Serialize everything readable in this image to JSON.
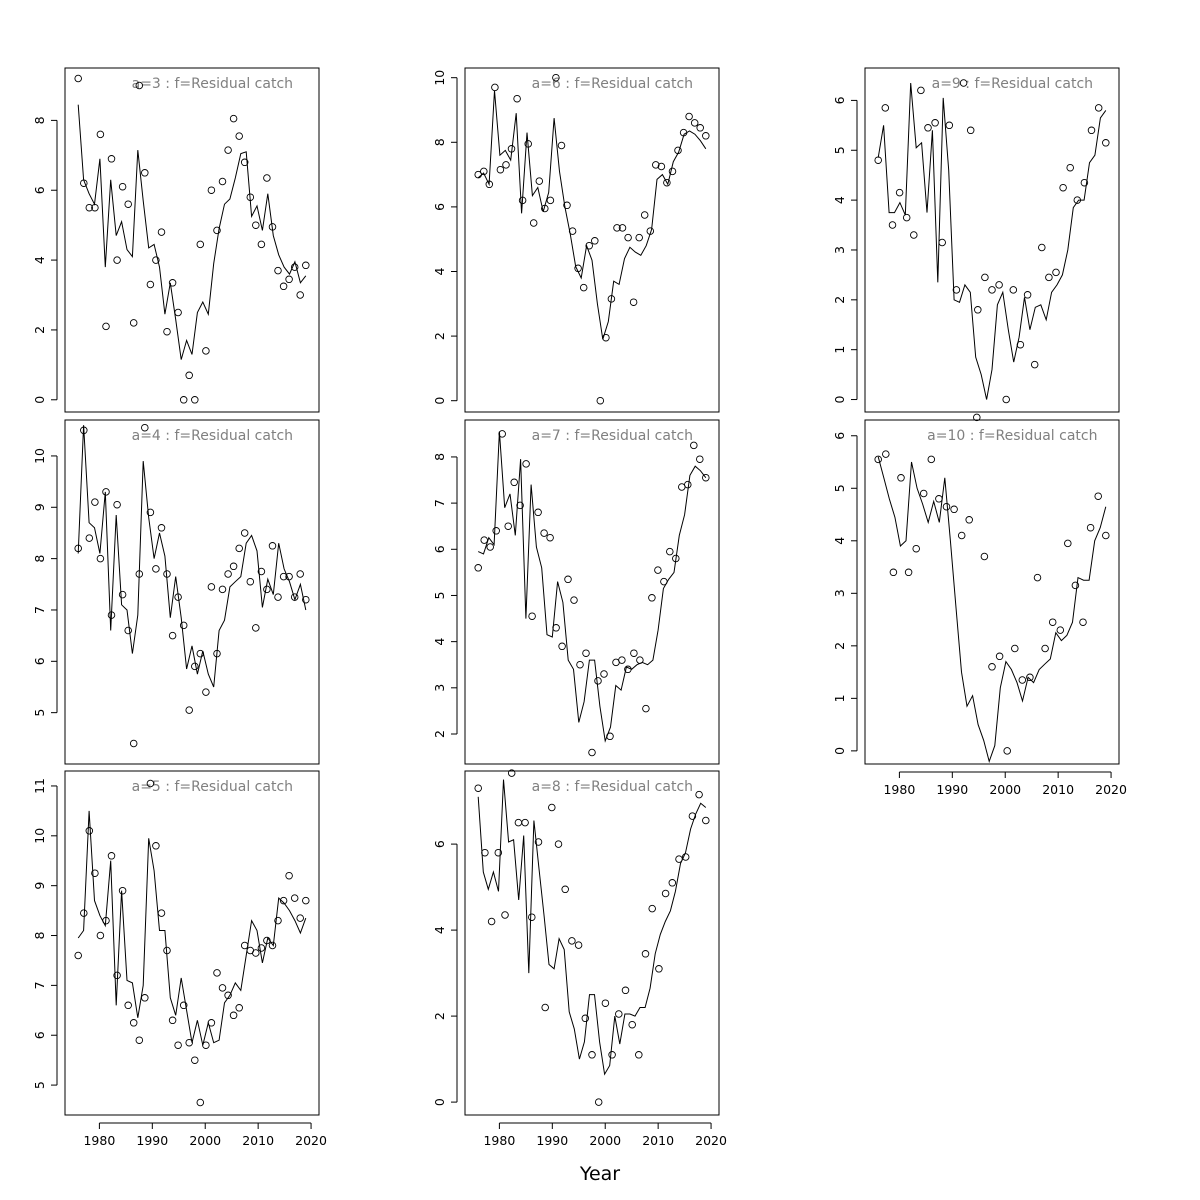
{
  "figure": {
    "xlabel": "Year"
  },
  "chart_data": [
    {
      "type": "scatter",
      "title": "a=3  :  f=Residual catch",
      "xlim": [
        1973.5,
        2021.5
      ],
      "ylim": [
        -0.35,
        9.5
      ],
      "yticks": [
        0,
        2,
        4,
        6,
        8
      ],
      "xticks": [],
      "x_start": 1976,
      "points": [
        9.2,
        6.2,
        5.5,
        5.5,
        7.6,
        2.1,
        6.9,
        4.0,
        6.1,
        5.6,
        2.2,
        9.0,
        6.5,
        3.3,
        4.0,
        4.8,
        1.95,
        3.35,
        2.5,
        0.0,
        0.7,
        0.0,
        4.45,
        1.4,
        6.0,
        4.85,
        6.25,
        7.15,
        8.05,
        7.55,
        6.8,
        5.8,
        5.0,
        4.45,
        6.35,
        4.95,
        3.7,
        3.25,
        3.45,
        3.8,
        3.0,
        3.85
      ],
      "line": [
        8.45,
        6.3,
        5.9,
        5.6,
        6.9,
        3.8,
        6.3,
        4.7,
        5.1,
        4.3,
        4.1,
        7.15,
        5.7,
        4.35,
        4.45,
        3.8,
        2.45,
        3.35,
        2.3,
        1.15,
        1.7,
        1.3,
        2.5,
        2.8,
        2.45,
        3.9,
        4.9,
        5.6,
        5.75,
        6.35,
        7.05,
        7.1,
        5.25,
        5.55,
        4.85,
        5.9,
        4.7,
        4.15,
        3.8,
        3.6,
        3.95,
        3.35,
        3.55
      ]
    },
    {
      "type": "scatter",
      "title": "a=4  :  f=Residual catch",
      "xlim": [
        1973.5,
        2021.5
      ],
      "ylim": [
        4.0,
        10.7
      ],
      "yticks": [
        5,
        6,
        7,
        8,
        9,
        10
      ],
      "xticks": [],
      "x_start": 1976,
      "points": [
        8.2,
        10.5,
        8.4,
        9.1,
        8.0,
        9.3,
        6.9,
        9.05,
        7.3,
        6.6,
        4.4,
        7.7,
        10.55,
        8.9,
        7.8,
        8.6,
        7.7,
        6.5,
        7.25,
        6.7,
        5.05,
        5.9,
        6.15,
        5.4,
        7.45,
        6.15,
        7.4,
        7.7,
        7.85,
        8.2,
        8.5,
        7.55,
        6.65,
        7.75,
        7.4,
        8.25,
        7.25,
        7.65,
        7.65,
        7.25,
        7.7,
        7.2
      ],
      "line": [
        8.1,
        10.6,
        8.7,
        8.6,
        8.1,
        9.3,
        6.6,
        8.85,
        7.1,
        7.0,
        6.15,
        6.9,
        9.9,
        8.8,
        8.0,
        8.5,
        8.05,
        6.85,
        7.65,
        6.85,
        5.85,
        6.3,
        5.75,
        6.2,
        5.75,
        5.5,
        6.6,
        6.8,
        7.45,
        7.55,
        7.65,
        8.3,
        8.45,
        8.15,
        7.05,
        7.6,
        7.3,
        8.3,
        7.8,
        7.55,
        7.2,
        7.5,
        7.0
      ]
    },
    {
      "type": "scatter",
      "title": "a=5  :  f=Residual catch",
      "xlim": [
        1973.5,
        2021.5
      ],
      "ylim": [
        4.4,
        11.3
      ],
      "yticks": [
        5,
        6,
        7,
        8,
        9,
        10,
        11
      ],
      "xticks": [
        1980,
        1990,
        2000,
        2010,
        2020
      ],
      "x_start": 1976,
      "points": [
        7.6,
        8.45,
        10.1,
        9.25,
        8.0,
        8.3,
        9.6,
        7.2,
        8.9,
        6.6,
        6.25,
        5.9,
        6.75,
        11.05,
        9.8,
        8.45,
        7.7,
        6.3,
        5.8,
        6.6,
        5.85,
        5.5,
        4.65,
        5.8,
        6.25,
        7.25,
        6.95,
        6.8,
        6.4,
        6.55,
        7.8,
        7.7,
        7.65,
        7.75,
        7.9,
        7.8,
        8.3,
        8.7,
        9.2,
        8.75,
        8.35,
        8.7
      ],
      "line": [
        7.95,
        8.1,
        10.5,
        8.7,
        8.4,
        8.2,
        9.5,
        6.6,
        8.9,
        7.1,
        7.05,
        6.35,
        7.0,
        9.95,
        9.3,
        8.1,
        8.1,
        6.75,
        6.4,
        7.15,
        6.5,
        5.85,
        6.3,
        5.8,
        6.25,
        5.85,
        5.9,
        6.65,
        6.8,
        7.05,
        6.9,
        7.6,
        8.3,
        8.1,
        7.45,
        7.95,
        7.8,
        8.75,
        8.65,
        8.5,
        8.3,
        8.05,
        8.35
      ]
    },
    {
      "type": "scatter",
      "title": "a=6  :  f=Residual catch",
      "xlim": [
        1973.5,
        2021.5
      ],
      "ylim": [
        -0.35,
        10.3
      ],
      "yticks": [
        0,
        2,
        4,
        6,
        8,
        10
      ],
      "xticks": [],
      "x_start": 1976,
      "points": [
        7.0,
        7.1,
        6.7,
        9.7,
        7.15,
        7.3,
        7.8,
        9.35,
        6.2,
        7.95,
        5.5,
        6.8,
        5.95,
        6.2,
        10.0,
        7.9,
        6.05,
        5.25,
        4.1,
        3.5,
        4.8,
        4.95,
        0.0,
        1.95,
        3.15,
        5.35,
        5.35,
        5.05,
        3.05,
        5.05,
        5.75,
        5.25,
        7.3,
        7.25,
        6.75,
        7.1,
        7.75,
        8.3,
        8.8,
        8.6,
        8.45,
        8.2
      ],
      "line": [
        6.9,
        7.05,
        6.7,
        9.6,
        7.6,
        7.75,
        7.45,
        8.9,
        5.8,
        8.3,
        6.35,
        6.6,
        5.85,
        6.45,
        8.75,
        7.1,
        6.0,
        5.15,
        4.15,
        3.8,
        4.8,
        4.35,
        3.0,
        1.9,
        2.45,
        3.7,
        3.6,
        4.4,
        4.75,
        4.6,
        4.5,
        4.8,
        5.3,
        6.85,
        7.0,
        6.7,
        7.4,
        7.7,
        8.25,
        8.35,
        8.25,
        8.05,
        7.8
      ]
    },
    {
      "type": "scatter",
      "title": "a=7  :  f=Residual catch",
      "xlim": [
        1973.5,
        2021.5
      ],
      "ylim": [
        1.35,
        8.8
      ],
      "yticks": [
        2,
        3,
        4,
        5,
        6,
        7,
        8
      ],
      "xticks": [],
      "x_start": 1976,
      "points": [
        5.6,
        6.2,
        6.05,
        6.4,
        8.5,
        6.5,
        7.45,
        6.95,
        7.85,
        4.55,
        6.8,
        6.35,
        6.25,
        4.3,
        3.9,
        5.35,
        4.9,
        3.5,
        3.75,
        1.6,
        3.15,
        3.3,
        1.95,
        3.55,
        3.6,
        3.4,
        3.75,
        3.6,
        2.55,
        4.95,
        5.55,
        5.3,
        5.95,
        5.8,
        7.35,
        7.4,
        8.25,
        7.95,
        7.55
      ],
      "line": [
        5.95,
        5.9,
        6.25,
        6.1,
        8.55,
        6.9,
        7.2,
        6.3,
        7.95,
        4.5,
        7.4,
        6.05,
        5.6,
        4.15,
        4.1,
        5.3,
        4.85,
        3.6,
        3.4,
        2.25,
        2.7,
        3.6,
        3.6,
        2.6,
        1.85,
        2.15,
        3.05,
        2.95,
        3.45,
        3.4,
        3.5,
        3.55,
        3.5,
        3.6,
        4.25,
        5.15,
        5.35,
        5.5,
        6.3,
        6.75,
        7.6,
        7.8,
        7.7,
        7.55
      ]
    },
    {
      "type": "scatter",
      "title": "a=8  :  f=Residual catch",
      "xlim": [
        1973.5,
        2021.5
      ],
      "ylim": [
        -0.3,
        7.7
      ],
      "yticks": [
        0,
        2,
        4,
        6
      ],
      "xticks": [
        1980,
        1990,
        2000,
        2010,
        2020
      ],
      "x_start": 1976,
      "points": [
        7.3,
        5.8,
        4.2,
        5.8,
        4.35,
        7.65,
        6.5,
        6.5,
        4.3,
        6.05,
        2.2,
        6.85,
        6.0,
        4.95,
        3.75,
        3.65,
        1.95,
        1.1,
        0.0,
        2.3,
        1.1,
        2.05,
        2.6,
        1.8,
        1.1,
        3.45,
        4.5,
        3.1,
        4.85,
        5.1,
        5.65,
        5.7,
        6.65,
        7.15,
        6.55
      ],
      "line": [
        7.1,
        5.35,
        4.95,
        5.35,
        4.9,
        7.5,
        6.05,
        6.1,
        4.7,
        6.2,
        3.0,
        6.55,
        5.45,
        4.35,
        3.2,
        3.1,
        3.8,
        3.55,
        2.1,
        1.7,
        1.0,
        1.4,
        2.5,
        2.5,
        1.4,
        0.65,
        0.85,
        2.0,
        1.35,
        2.05,
        2.05,
        2.0,
        2.2,
        2.2,
        2.65,
        3.45,
        3.9,
        4.2,
        4.45,
        4.9,
        5.55,
        5.8,
        6.35,
        6.7,
        6.95,
        6.85
      ]
    },
    {
      "type": "scatter",
      "title": "a=9  :  f=Residual catch",
      "xlim": [
        1973.5,
        2021.5
      ],
      "ylim": [
        -0.25,
        6.65
      ],
      "yticks": [
        0,
        1,
        2,
        3,
        4,
        5,
        6
      ],
      "xticks": [],
      "x_start": 1976,
      "points": [
        4.8,
        5.85,
        3.5,
        4.15,
        3.65,
        3.3,
        6.2,
        5.45,
        5.55,
        3.15,
        5.5,
        2.2,
        6.35,
        5.4,
        1.8,
        2.45,
        2.2,
        2.3,
        0.0,
        2.2,
        1.1,
        2.1,
        0.7,
        3.05,
        2.45,
        2.55,
        4.25,
        4.65,
        4.0,
        4.35,
        5.4,
        5.85,
        5.15
      ],
      "line": [
        4.85,
        5.5,
        3.75,
        3.75,
        3.95,
        3.7,
        6.35,
        5.05,
        5.15,
        3.75,
        5.4,
        2.35,
        6.05,
        4.6,
        2.0,
        1.95,
        2.3,
        2.15,
        0.85,
        0.5,
        0.0,
        0.6,
        1.9,
        2.15,
        1.4,
        0.75,
        1.25,
        2.05,
        1.4,
        1.85,
        1.9,
        1.6,
        2.15,
        2.3,
        2.5,
        3.0,
        3.85,
        4.0,
        4.0,
        4.75,
        4.9,
        5.65,
        5.8
      ]
    },
    {
      "type": "scatter",
      "title": "a=10  :  f=Residual catch",
      "xlim": [
        1973.5,
        2021.5
      ],
      "ylim": [
        -0.25,
        6.3
      ],
      "yticks": [
        0,
        1,
        2,
        3,
        4,
        5,
        6
      ],
      "xticks": [
        1980,
        1990,
        2000,
        2010,
        2020
      ],
      "x_start": 1976,
      "points": [
        5.55,
        5.65,
        3.4,
        5.2,
        3.4,
        3.85,
        4.9,
        5.55,
        4.8,
        4.65,
        4.6,
        4.1,
        4.4,
        6.35,
        3.7,
        1.6,
        1.8,
        0.0,
        1.95,
        1.35,
        1.4,
        3.3,
        1.95,
        2.45,
        2.3,
        3.95,
        3.15,
        2.45,
        4.25,
        4.85,
        4.1
      ],
      "line": [
        5.6,
        5.2,
        4.8,
        4.45,
        3.9,
        4.0,
        5.5,
        5.0,
        4.7,
        4.35,
        4.75,
        4.35,
        5.2,
        4.0,
        2.75,
        1.5,
        0.85,
        1.05,
        0.5,
        0.2,
        -0.2,
        0.1,
        1.2,
        1.7,
        1.55,
        1.3,
        0.95,
        1.4,
        1.3,
        1.55,
        1.65,
        1.75,
        2.25,
        2.1,
        2.2,
        2.45,
        3.3,
        3.25,
        3.25,
        4.0,
        4.25,
        4.65
      ]
    }
  ]
}
